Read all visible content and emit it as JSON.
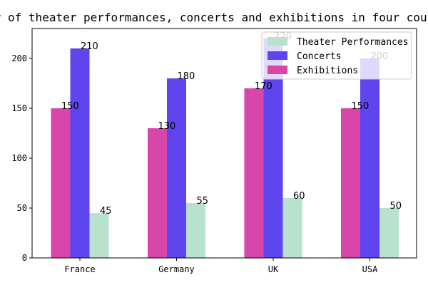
{
  "chart_data": {
    "type": "bar",
    "title": "Number of theater performances, concerts and exhibitions in four countries",
    "xlabel": "",
    "ylabel": "",
    "categories": [
      "France",
      "Germany",
      "UK",
      "USA"
    ],
    "series": [
      {
        "name": "Exhibitions",
        "values": [
          150,
          130,
          170,
          150
        ],
        "color": "#d946a9"
      },
      {
        "name": "Concerts",
        "values": [
          210,
          180,
          220,
          200
        ],
        "color": "#5e45ee"
      },
      {
        "name": "Theater Performances",
        "values": [
          45,
          55,
          60,
          50
        ],
        "color": "#b8e2cc"
      }
    ],
    "legend_order": [
      "Theater Performances",
      "Concerts",
      "Exhibitions"
    ],
    "ylim": [
      0,
      230
    ],
    "yticks": [
      0,
      50,
      100,
      150,
      200
    ],
    "grid": false,
    "legend_position": "top-right"
  }
}
